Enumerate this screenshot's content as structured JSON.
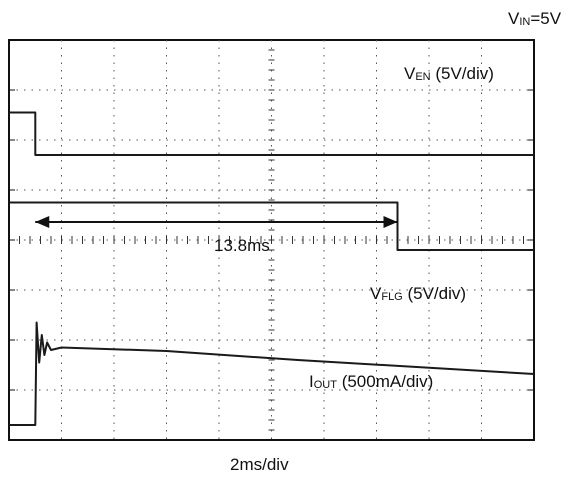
{
  "chart_data": {
    "type": "line",
    "header_label": {
      "main": "V",
      "sub": "IN",
      "rest": "=5V"
    },
    "x_division_label": "2ms/div",
    "x_unit": "ms",
    "x_range": [
      -1,
      19
    ],
    "divisions": {
      "x": 10,
      "y": 8
    },
    "annotation": {
      "text": "13.8ms",
      "from_ms": 0,
      "to_ms": 13.8
    },
    "series": [
      {
        "name": "VEN (5V/div)",
        "label": {
          "main": "V",
          "sub": "EN",
          "rest": " (5V/div)"
        },
        "points": [
          [
            -1,
            6.55
          ],
          [
            0,
            6.55
          ],
          [
            0,
            5.7
          ],
          [
            19,
            5.7
          ]
        ]
      },
      {
        "name": "VFLG (5V/div)",
        "label": {
          "main": "V",
          "sub": "FLG",
          "rest": "  (5V/div)"
        },
        "points": [
          [
            -1,
            4.75
          ],
          [
            13.8,
            4.75
          ],
          [
            13.8,
            3.8
          ],
          [
            19,
            3.8
          ]
        ]
      },
      {
        "name": "IOUT (500mA/div)",
        "label": {
          "main": "I",
          "sub": "OUT",
          "rest": " (500mA/div)"
        },
        "points": [
          [
            -1,
            0.3
          ],
          [
            0,
            0.3
          ],
          [
            0.05,
            2.35
          ],
          [
            0.15,
            1.55
          ],
          [
            0.25,
            2.1
          ],
          [
            0.35,
            1.7
          ],
          [
            0.45,
            1.95
          ],
          [
            0.6,
            1.8
          ],
          [
            1,
            1.85
          ],
          [
            5,
            1.78
          ],
          [
            10,
            1.6
          ],
          [
            19,
            1.32
          ]
        ]
      }
    ]
  }
}
